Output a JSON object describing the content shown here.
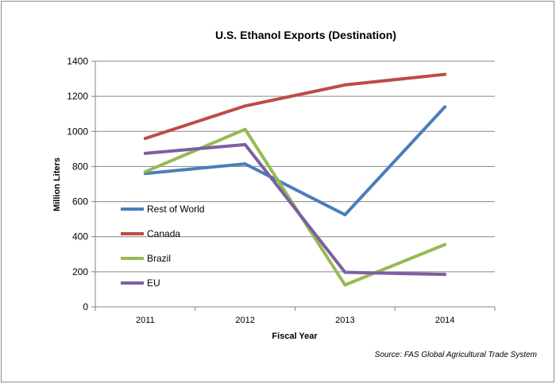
{
  "chart_data": {
    "type": "line",
    "title": "U.S. Ethanol Exports (Destination)",
    "xlabel": "Fiscal Year",
    "ylabel": "Million Liters",
    "categories": [
      "2011",
      "2012",
      "2013",
      "2014"
    ],
    "ylim": [
      0,
      1400
    ],
    "yticks": [
      0,
      200,
      400,
      600,
      800,
      1000,
      1200,
      1400
    ],
    "grid": true,
    "legend_position": "left",
    "series": [
      {
        "name": "Rest of World",
        "color": "#4a7ebb",
        "values": [
          760,
          815,
          525,
          1140
        ]
      },
      {
        "name": "Canada",
        "color": "#be4b48",
        "values": [
          960,
          1145,
          1265,
          1325
        ]
      },
      {
        "name": "Brazil",
        "color": "#98b954",
        "values": [
          770,
          1012,
          125,
          355
        ]
      },
      {
        "name": "EU",
        "color": "#7d60a0",
        "values": [
          875,
          925,
          197,
          185
        ]
      }
    ],
    "source": "Source: FAS Global Agricultural Trade System"
  }
}
